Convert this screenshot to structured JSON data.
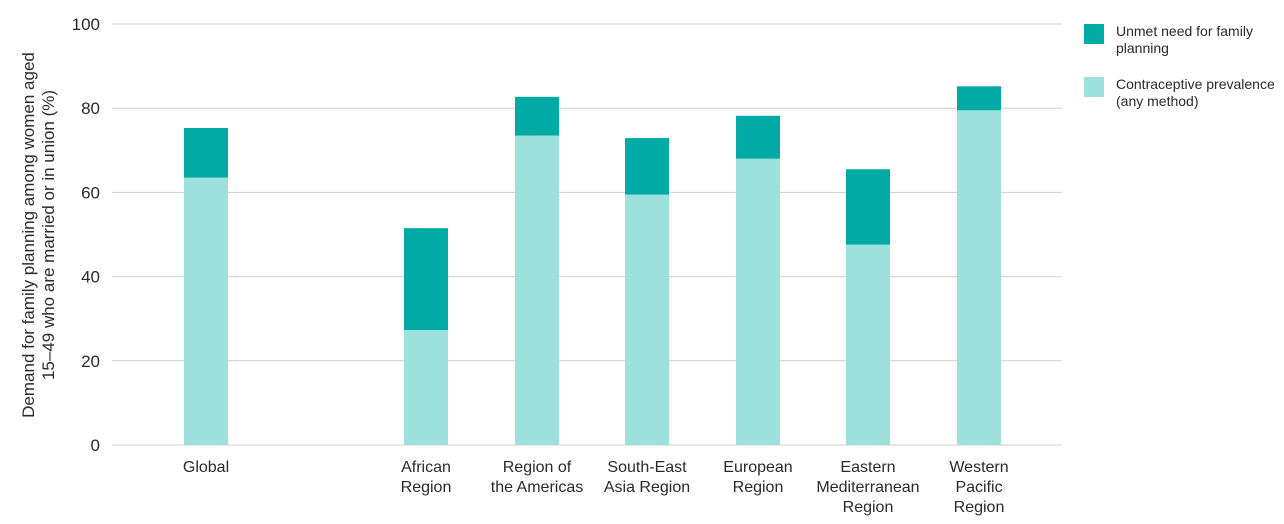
{
  "chart_data": {
    "type": "bar",
    "stacked": true,
    "ylabel_lines": [
      "Demand for family planning among women aged",
      "15–49 who are married or in union (%)"
    ],
    "ylim": [
      0,
      100
    ],
    "yticks": [
      "0",
      "20",
      "40",
      "60",
      "80",
      "100"
    ],
    "grid": true,
    "legend_position": "top-right",
    "categories": [
      {
        "lines": [
          "Global"
        ]
      },
      {
        "lines": [
          "African",
          "Region"
        ]
      },
      {
        "lines": [
          "Region of",
          "the Americas"
        ]
      },
      {
        "lines": [
          "South-East",
          "Asia Region"
        ]
      },
      {
        "lines": [
          "European",
          "Region"
        ]
      },
      {
        "lines": [
          "Eastern",
          "Mediterranean",
          "Region"
        ]
      },
      {
        "lines": [
          "Western",
          "Pacific",
          "Region"
        ]
      }
    ],
    "series": [
      {
        "name_lines": [
          "Contraceptive prevalence",
          "(any method)"
        ],
        "color": "#9de0dc",
        "values": [
          63.5,
          27.3,
          73.5,
          59.5,
          68,
          47.6,
          79.5
        ]
      },
      {
        "name_lines": [
          "Unmet need for family",
          "planning"
        ],
        "color": "#00aba6",
        "values": [
          11.8,
          24.2,
          9.2,
          13.4,
          10.2,
          17.9,
          5.7
        ]
      }
    ]
  }
}
